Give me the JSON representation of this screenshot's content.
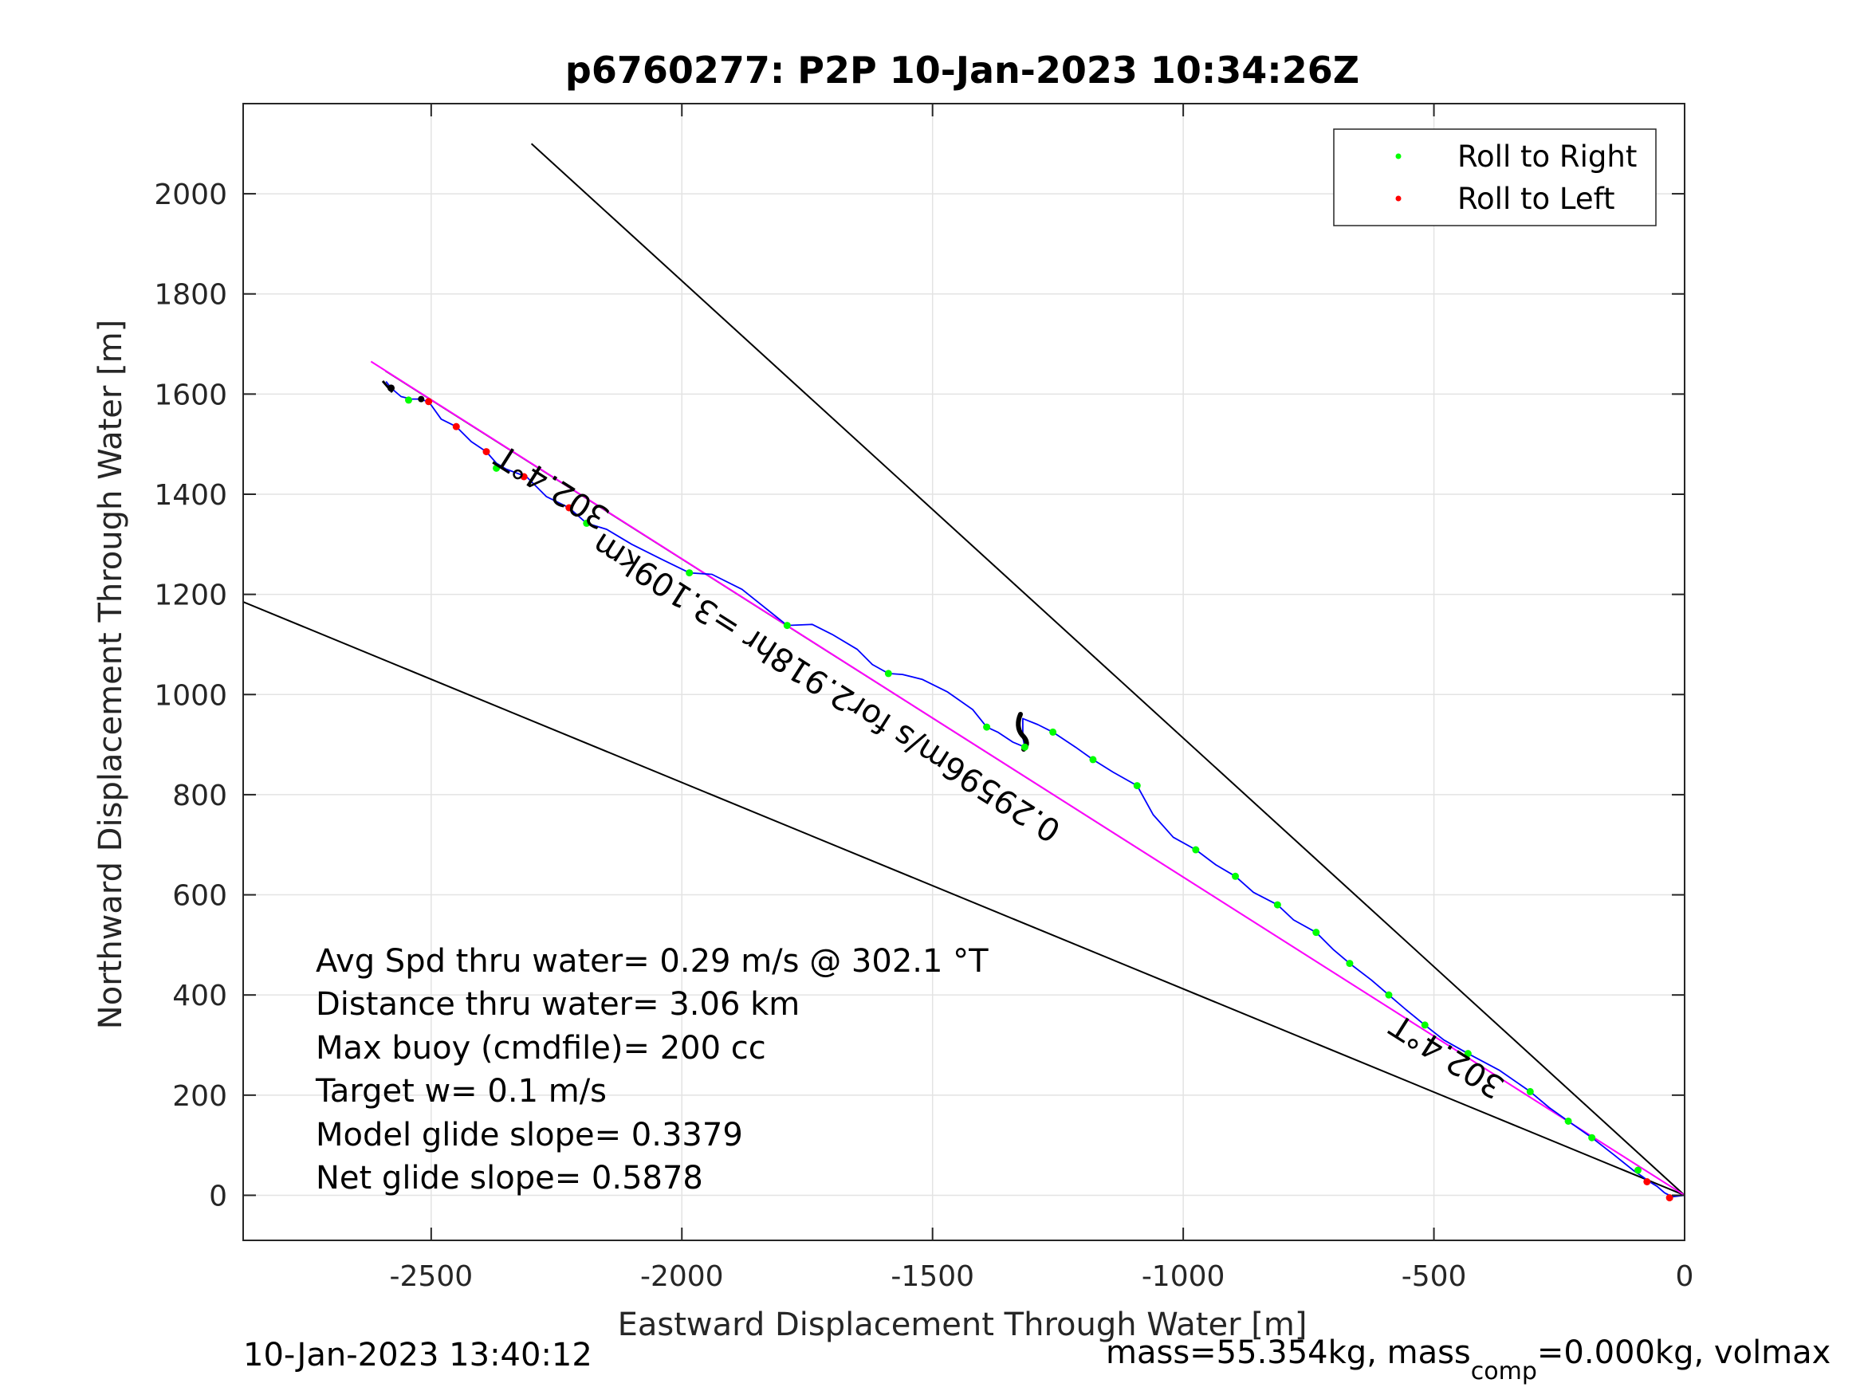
{
  "chart_data": {
    "type": "line",
    "title": "p6760277: P2P 10-Jan-2023 10:34:26Z",
    "xlabel": "Eastward Displacement Through Water [m]",
    "ylabel": "Northward Displacement Through Water [m]",
    "xlim": [
      -2875,
      0
    ],
    "ylim": [
      -90,
      2180
    ],
    "xticks": [
      -2500,
      -2000,
      -1500,
      -1000,
      -500,
      0
    ],
    "xtick_labels": [
      "-2500",
      "-2000",
      "-1500",
      "-1000",
      "-500",
      "0"
    ],
    "yticks": [
      0,
      200,
      400,
      600,
      800,
      1000,
      1200,
      1400,
      1600,
      1800,
      2000
    ],
    "ytick_labels": [
      "0",
      "200",
      "400",
      "600",
      "800",
      "1000",
      "1200",
      "1400",
      "1600",
      "1800",
      "2000"
    ],
    "grid": true,
    "legend_position": "top-right",
    "legend": [
      {
        "label": "Roll to Right",
        "color": "#00ff00"
      },
      {
        "label": "Roll to Left",
        "color": "#ff0000"
      }
    ],
    "colors": {
      "track": "#0000ff",
      "heading_line": "#ff00ff",
      "cone": "#000000",
      "right_roll": "#00ff00",
      "left_roll": "#ff0000"
    },
    "track": [
      [
        0,
        0
      ],
      [
        -25,
        -3
      ],
      [
        -40,
        5
      ],
      [
        -55,
        18
      ],
      [
        -70,
        27
      ],
      [
        -85,
        38
      ],
      [
        -100,
        48
      ],
      [
        -140,
        80
      ],
      [
        -185,
        115
      ],
      [
        -232,
        148
      ],
      [
        -270,
        175
      ],
      [
        -308,
        207
      ],
      [
        -370,
        250
      ],
      [
        -432,
        283
      ],
      [
        -480,
        310
      ],
      [
        -518,
        340
      ],
      [
        -555,
        370
      ],
      [
        -590,
        400
      ],
      [
        -625,
        430
      ],
      [
        -668,
        463
      ],
      [
        -700,
        490
      ],
      [
        -735,
        525
      ],
      [
        -780,
        550
      ],
      [
        -812,
        580
      ],
      [
        -860,
        605
      ],
      [
        -896,
        637
      ],
      [
        -935,
        660
      ],
      [
        -975,
        690
      ],
      [
        -1020,
        715
      ],
      [
        -1060,
        760
      ],
      [
        -1092,
        818
      ],
      [
        -1140,
        845
      ],
      [
        -1180,
        870
      ],
      [
        -1215,
        895
      ],
      [
        -1260,
        925
      ],
      [
        -1290,
        940
      ],
      [
        -1320,
        952
      ],
      [
        -1320,
        915
      ],
      [
        -1316,
        895
      ],
      [
        -1340,
        905
      ],
      [
        -1370,
        925
      ],
      [
        -1392,
        935
      ],
      [
        -1420,
        970
      ],
      [
        -1470,
        1005
      ],
      [
        -1520,
        1030
      ],
      [
        -1560,
        1040
      ],
      [
        -1588,
        1042
      ],
      [
        -1620,
        1060
      ],
      [
        -1650,
        1090
      ],
      [
        -1700,
        1120
      ],
      [
        -1740,
        1140
      ],
      [
        -1790,
        1138
      ],
      [
        -1830,
        1170
      ],
      [
        -1880,
        1210
      ],
      [
        -1940,
        1240
      ],
      [
        -1985,
        1243
      ],
      [
        -2040,
        1270
      ],
      [
        -2100,
        1300
      ],
      [
        -2150,
        1330
      ],
      [
        -2190,
        1342
      ],
      [
        -2225,
        1373
      ],
      [
        -2270,
        1395
      ],
      [
        -2310,
        1435
      ],
      [
        -2350,
        1450
      ],
      [
        -2370,
        1462
      ],
      [
        -2390,
        1485
      ],
      [
        -2420,
        1505
      ],
      [
        -2450,
        1535
      ],
      [
        -2480,
        1550
      ],
      [
        -2505,
        1585
      ],
      [
        -2525,
        1590
      ],
      [
        -2540,
        1590
      ],
      [
        -2560,
        1595
      ],
      [
        -2580,
        1612
      ],
      [
        -2590,
        1625
      ]
    ],
    "roll_right_points": [
      [
        -93,
        50
      ],
      [
        -185,
        115
      ],
      [
        -232,
        148
      ],
      [
        -308,
        207
      ],
      [
        -432,
        283
      ],
      [
        -518,
        340
      ],
      [
        -590,
        400
      ],
      [
        -668,
        463
      ],
      [
        -735,
        525
      ],
      [
        -812,
        580
      ],
      [
        -896,
        637
      ],
      [
        -975,
        690
      ],
      [
        -1092,
        818
      ],
      [
        -1180,
        870
      ],
      [
        -1260,
        925
      ],
      [
        -1316,
        895
      ],
      [
        -1392,
        935
      ],
      [
        -1588,
        1042
      ],
      [
        -1790,
        1138
      ],
      [
        -1985,
        1243
      ],
      [
        -2190,
        1342
      ],
      [
        -2370,
        1452
      ],
      [
        -2545,
        1588
      ]
    ],
    "roll_left_points": [
      [
        -75,
        27
      ],
      [
        -30,
        -5
      ],
      [
        -2225,
        1373
      ],
      [
        -2315,
        1435
      ],
      [
        -2390,
        1485
      ],
      [
        -2450,
        1535
      ],
      [
        -2505,
        1585
      ]
    ],
    "heading_line": [
      [
        0,
        0
      ],
      [
        -2620,
        1665
      ]
    ],
    "cone_lines": [
      [
        [
          0,
          0
        ],
        [
          -2875,
          1185
        ]
      ],
      [
        [
          0,
          0
        ],
        [
          -2300,
          2100
        ]
      ]
    ],
    "annotations": [
      {
        "text": "302.4°T",
        "anchor": [
          -2140,
          1365
        ],
        "rotation": 212.4
      },
      {
        "text": "302.4°T",
        "anchor": [
          -355,
          228
        ],
        "rotation": 212.4
      },
      {
        "text": "0.29596m/s for2.918hr =3.109km",
        "anchor": [
          -1240,
          740
        ],
        "rotation": 212.4
      }
    ],
    "info_lines": [
      "Avg Spd thru water=  0.29 m/s @ 302.1 °T",
      "Distance thru water=  3.06 km",
      "Max buoy (cmdfile)= 200 cc",
      "Target w= 0.1 m/s",
      "Model glide slope= 0.3379",
      "Net glide slope= 0.5878"
    ]
  },
  "footer": {
    "timestamp": "10-Jan-2023 13:40:12",
    "mass_text_pre": "mass=55.354kg, mass",
    "mass_subscript": "comp",
    "mass_text_post": "=0.000kg, volmax"
  }
}
